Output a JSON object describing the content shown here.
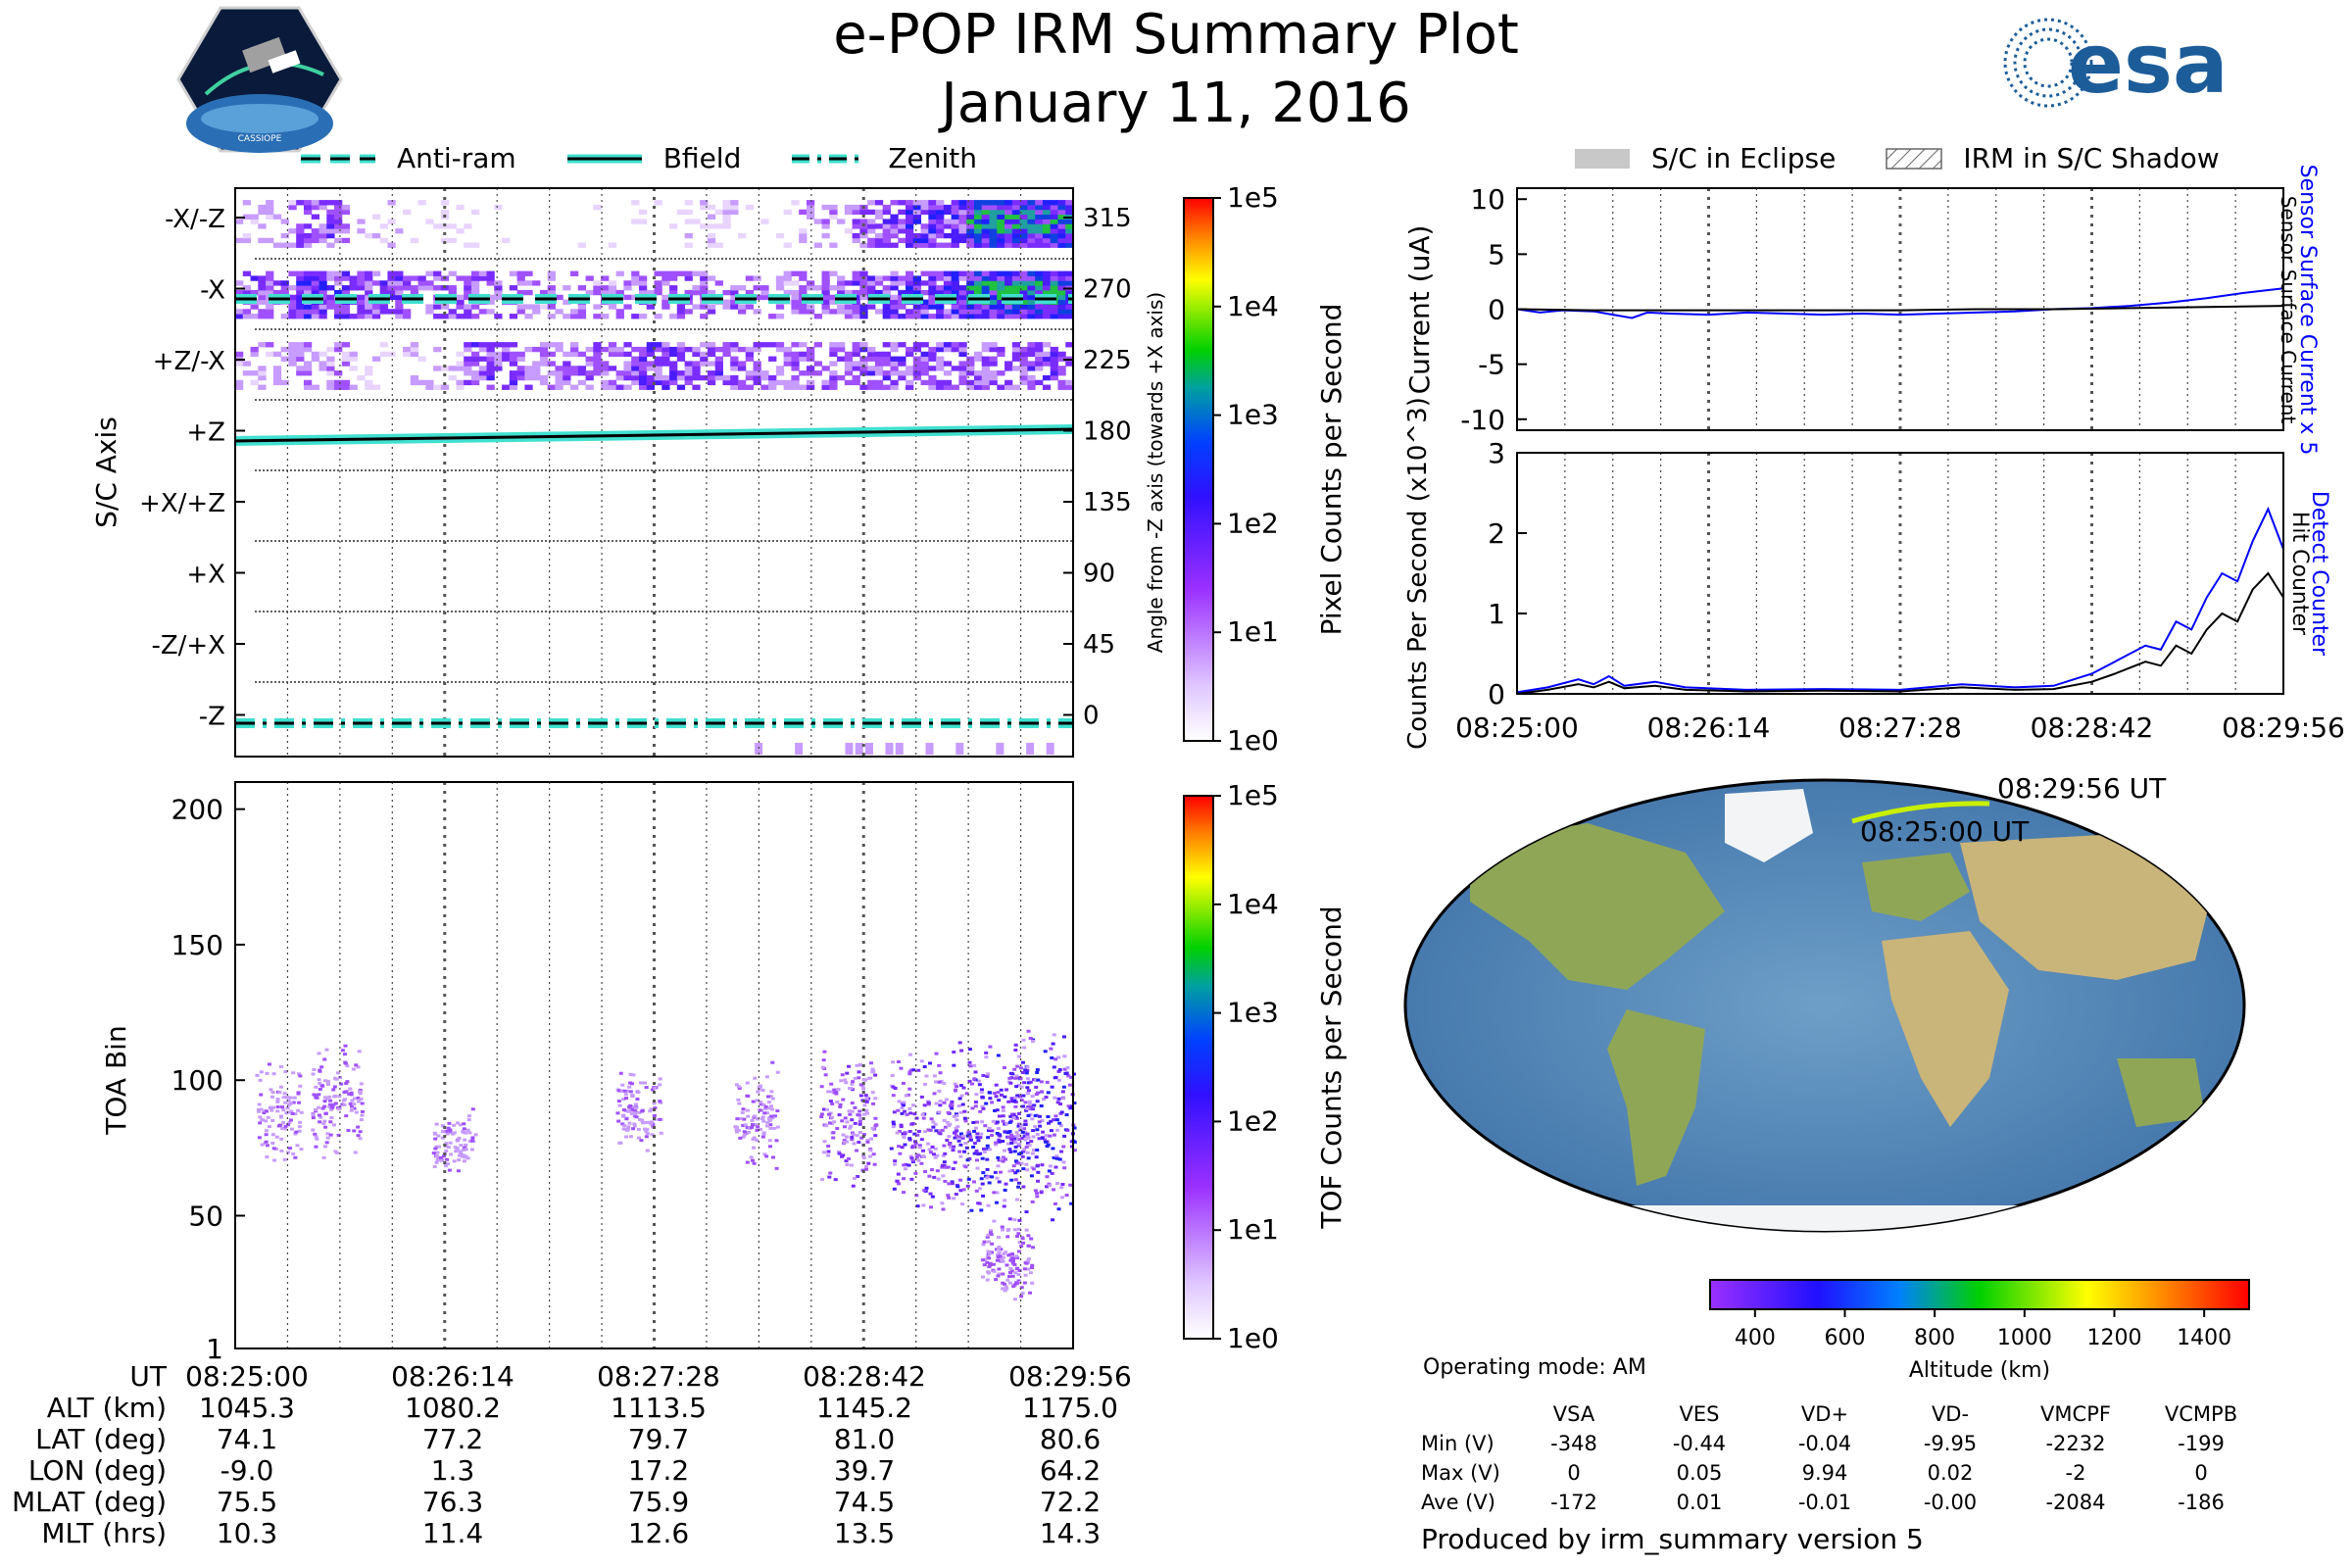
{
  "header": {
    "title": "e-POP IRM Summary Plot",
    "date": "January 11, 2016",
    "mission_logo_text": "CASSIOPE",
    "agency_logo_text": "esa"
  },
  "legend_left": [
    {
      "label": "Anti-ram",
      "style": "dashed"
    },
    {
      "label": "Bfield",
      "style": "solid"
    },
    {
      "label": "Zenith",
      "style": "dashdot"
    }
  ],
  "legend_right": [
    {
      "label": "S/C in Eclipse",
      "style": "gray-fill"
    },
    {
      "label": "IRM in S/C Shadow",
      "style": "hatch"
    }
  ],
  "colors": {
    "line_fill": "#40e0d0",
    "current_detect": "#0000ff",
    "current_hit": "#000000",
    "ion_purple": "#9b30ff",
    "ion_blue": "#2020ff",
    "ion_green": "#20d020"
  },
  "chart_data": [
    {
      "type": "heatmap",
      "name": "sc-axis",
      "ylabel": "S/C Axis",
      "ylabel_right": "Angle from -Z axis (towards +X axis)",
      "y_axis_labels": [
        "-X/-Z",
        "-X",
        "+Z/-X",
        "+Z",
        "+X/+Z",
        "+X",
        "-Z/+X",
        "-Z"
      ],
      "y_ticks_right": [
        "315",
        "270",
        "225",
        "180",
        "135",
        "90",
        "45",
        "0"
      ],
      "x_ticks": [
        "08:25:00",
        "08:26:14",
        "08:27:28",
        "08:28:42",
        "08:29:56"
      ],
      "colorbar_label": "Pixel Counts per Second",
      "colorbar_ticks": [
        "1e5",
        "1e4",
        "1e3",
        "1e2",
        "1e1",
        "1e0"
      ],
      "lines": {
        "anti_ram_deg": 270,
        "zenith_deg": 0,
        "bfield_deg": [
          173,
          184
        ]
      },
      "bands": [
        {
          "angle_range": [
            300,
            330
          ],
          "activity": [
            0.3,
            0.6,
            0.2,
            0.1,
            0.1,
            0.0,
            0.1,
            0.1,
            0.2,
            0.1,
            0.3,
            0.6,
            0.8,
            1.0,
            1.0
          ]
        },
        {
          "angle_range": [
            255,
            285
          ],
          "activity": [
            0.6,
            0.8,
            0.6,
            0.5,
            0.5,
            0.4,
            0.4,
            0.5,
            0.5,
            0.4,
            0.5,
            0.7,
            0.8,
            1.0,
            1.0
          ]
        },
        {
          "angle_range": [
            210,
            240
          ],
          "activity": [
            0.3,
            0.4,
            0.2,
            0.2,
            0.6,
            0.5,
            0.5,
            0.7,
            0.6,
            0.5,
            0.5,
            0.6,
            0.6,
            0.6,
            0.6
          ]
        }
      ]
    },
    {
      "type": "heatmap",
      "name": "toa",
      "ylabel": "TOA Bin",
      "y_ticks": [
        "200",
        "150",
        "100",
        "50",
        "1"
      ],
      "x_ticks": [
        "08:25:00",
        "08:26:14",
        "08:27:28",
        "08:28:42",
        "08:29:56"
      ],
      "colorbar_label": "TOF Counts per Second",
      "colorbar_ticks": [
        "1e5",
        "1e4",
        "1e3",
        "1e2",
        "1e1",
        "1e0"
      ],
      "blobs": [
        {
          "t": 0.05,
          "bin": 88,
          "spread": 12,
          "strength": 0.3
        },
        {
          "t": 0.12,
          "bin": 92,
          "spread": 15,
          "strength": 0.4
        },
        {
          "t": 0.26,
          "bin": 78,
          "spread": 8,
          "strength": 0.25
        },
        {
          "t": 0.48,
          "bin": 90,
          "spread": 10,
          "strength": 0.3
        },
        {
          "t": 0.62,
          "bin": 85,
          "spread": 14,
          "strength": 0.3
        },
        {
          "t": 0.73,
          "bin": 86,
          "spread": 16,
          "strength": 0.5
        },
        {
          "t": 0.82,
          "bin": 82,
          "spread": 20,
          "strength": 0.7
        },
        {
          "t": 0.9,
          "bin": 83,
          "spread": 22,
          "strength": 0.9
        },
        {
          "t": 0.97,
          "bin": 84,
          "spread": 24,
          "strength": 1.0
        },
        {
          "t": 0.92,
          "bin": 35,
          "spread": 10,
          "strength": 0.4
        }
      ]
    },
    {
      "type": "line",
      "name": "current",
      "ylabel": "Current (uA)",
      "y_ticks": [
        "10",
        "5",
        "0",
        "-5",
        "-10"
      ],
      "ylim": [
        -11,
        11
      ],
      "x_ticks": [
        "08:25:00",
        "08:26:14",
        "08:27:28",
        "08:28:42",
        "08:29:56"
      ],
      "right_labels": [
        "Sensor Surface Current x 5",
        "Sensor Surface Current"
      ],
      "series": [
        {
          "name": "Sensor Surface Current x 5",
          "color": "#0000ff",
          "x": [
            0,
            0.03,
            0.06,
            0.1,
            0.15,
            0.17,
            0.2,
            0.25,
            0.3,
            0.35,
            0.4,
            0.45,
            0.5,
            0.55,
            0.6,
            0.65,
            0.7,
            0.75,
            0.8,
            0.85,
            0.9,
            0.95,
            1.0
          ],
          "y": [
            0.0,
            -0.3,
            -0.1,
            -0.2,
            -0.8,
            -0.3,
            -0.4,
            -0.5,
            -0.3,
            -0.4,
            -0.5,
            -0.4,
            -0.5,
            -0.4,
            -0.3,
            -0.2,
            0.0,
            0.1,
            0.3,
            0.6,
            1.0,
            1.5,
            1.9
          ]
        },
        {
          "name": "Sensor Surface Current",
          "color": "#000000",
          "x": [
            0,
            0.1,
            0.2,
            0.3,
            0.4,
            0.5,
            0.6,
            0.7,
            0.8,
            0.9,
            1.0
          ],
          "y": [
            0.0,
            -0.1,
            -0.1,
            -0.1,
            -0.1,
            -0.1,
            0.0,
            0.0,
            0.1,
            0.2,
            0.3
          ]
        }
      ]
    },
    {
      "type": "line",
      "name": "counts",
      "ylabel": "Counts Per Second (x10^3)",
      "y_ticks": [
        "3",
        "2",
        "1",
        "0"
      ],
      "ylim": [
        0,
        3
      ],
      "x_ticks": [
        "08:25:00",
        "08:26:14",
        "08:27:28",
        "08:28:42",
        "08:29:56"
      ],
      "right_labels": [
        "Detect Counter",
        "Hit Counter"
      ],
      "series": [
        {
          "name": "Detect Counter",
          "color": "#0000ff",
          "x": [
            0,
            0.04,
            0.08,
            0.1,
            0.12,
            0.14,
            0.18,
            0.22,
            0.3,
            0.4,
            0.5,
            0.58,
            0.65,
            0.7,
            0.75,
            0.78,
            0.82,
            0.84,
            0.86,
            0.88,
            0.9,
            0.92,
            0.94,
            0.96,
            0.98,
            1.0
          ],
          "y": [
            0.02,
            0.08,
            0.18,
            0.12,
            0.22,
            0.1,
            0.15,
            0.08,
            0.05,
            0.06,
            0.05,
            0.12,
            0.08,
            0.1,
            0.25,
            0.4,
            0.6,
            0.55,
            0.9,
            0.8,
            1.2,
            1.5,
            1.4,
            1.9,
            2.3,
            1.8
          ]
        },
        {
          "name": "Hit Counter",
          "color": "#000000",
          "x": [
            0,
            0.04,
            0.08,
            0.1,
            0.12,
            0.14,
            0.18,
            0.22,
            0.3,
            0.4,
            0.5,
            0.58,
            0.65,
            0.7,
            0.75,
            0.78,
            0.82,
            0.84,
            0.86,
            0.88,
            0.9,
            0.92,
            0.94,
            0.96,
            0.98,
            1.0
          ],
          "y": [
            0.0,
            0.05,
            0.12,
            0.08,
            0.15,
            0.07,
            0.1,
            0.05,
            0.03,
            0.04,
            0.03,
            0.08,
            0.05,
            0.06,
            0.15,
            0.25,
            0.4,
            0.35,
            0.6,
            0.5,
            0.8,
            1.0,
            0.9,
            1.3,
            1.5,
            1.2
          ]
        }
      ]
    },
    {
      "type": "map",
      "name": "orbit",
      "track_start_label": "08:25:00 UT",
      "track_end_label": "08:29:56 UT",
      "colorbar_label": "Altitude (km)",
      "colorbar_ticks": [
        "400",
        "600",
        "800",
        "1000",
        "1200",
        "1400"
      ],
      "colorbar_range": [
        300,
        1500
      ]
    }
  ],
  "ephemeris": {
    "labels": [
      "UT",
      "ALT (km)",
      "LAT (deg)",
      "LON (deg)",
      "MLAT (deg)",
      "MLT (hrs)"
    ],
    "columns": [
      [
        "08:25:00",
        "1045.3",
        "74.1",
        "-9.0",
        "75.5",
        "10.3"
      ],
      [
        "08:26:14",
        "1080.2",
        "77.2",
        "1.3",
        "76.3",
        "11.4"
      ],
      [
        "08:27:28",
        "1113.5",
        "79.7",
        "17.2",
        "75.9",
        "12.6"
      ],
      [
        "08:28:42",
        "1145.2",
        "81.0",
        "39.7",
        "74.5",
        "13.5"
      ],
      [
        "08:29:56",
        "1175.0",
        "80.6",
        "64.2",
        "72.2",
        "14.3"
      ]
    ]
  },
  "operating_mode": "Operating mode: AM",
  "voltages": {
    "headers": [
      "VSA",
      "VES",
      "VD+",
      "VD-",
      "VMCPF",
      "VCMPB"
    ],
    "rows": [
      {
        "label": "Min (V)",
        "values": [
          "-348",
          "-0.44",
          "-0.04",
          "-9.95",
          "-2232",
          "-199"
        ]
      },
      {
        "label": "Max (V)",
        "values": [
          "0",
          "0.05",
          "9.94",
          "0.02",
          "-2",
          "0"
        ]
      },
      {
        "label": "Ave (V)",
        "values": [
          "-172",
          "0.01",
          "-0.01",
          "-0.00",
          "-2084",
          "-186"
        ]
      }
    ]
  },
  "footer": "Produced by irm_summary version 5"
}
